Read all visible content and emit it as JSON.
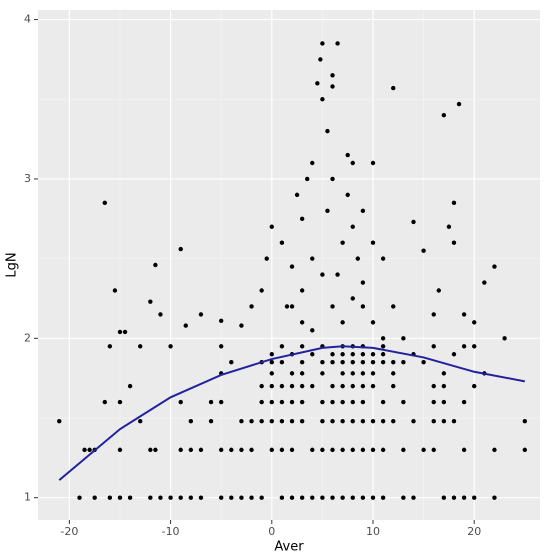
{
  "chart_data": {
    "type": "scatter",
    "x_label": "Aver",
    "y_label": "LgN",
    "xlim": [
      -23.1,
      26.5
    ],
    "ylim": [
      0.86,
      4.06
    ],
    "xticks": [
      -20,
      -10,
      0,
      10,
      20
    ],
    "yticks": [
      1,
      2,
      3,
      4
    ],
    "grid": true,
    "points": {
      "color": "#000000",
      "x": [
        -19,
        -17.5,
        -16,
        -15,
        -14,
        -12,
        -11,
        -10,
        -9,
        -8,
        -7,
        -5,
        -4,
        -3,
        -2,
        -1,
        1,
        2,
        3,
        4,
        5,
        6,
        7,
        8,
        9,
        10,
        11,
        13,
        14,
        17,
        18,
        19,
        20,
        22,
        -18.5,
        -18,
        -17.5,
        -15,
        -12,
        -11.5,
        -9,
        -8,
        -7,
        -5,
        -4,
        -3,
        -2,
        0,
        1,
        2,
        4,
        5,
        6,
        7,
        8,
        9,
        10,
        11,
        13,
        15,
        16,
        19,
        22,
        25,
        -21,
        -13,
        -8,
        -6,
        -3,
        -2,
        -1,
        0,
        1,
        2,
        3,
        5,
        6,
        7,
        8,
        9,
        10,
        11,
        12,
        14,
        16,
        17,
        18,
        25,
        -16.5,
        -15,
        -9,
        -6,
        -5,
        -1,
        0,
        1,
        2,
        3,
        5,
        6,
        7,
        8,
        9,
        11,
        13,
        16,
        17,
        19,
        -14,
        -1,
        0,
        1,
        2,
        3,
        4,
        6,
        7,
        8,
        9,
        10,
        12,
        16,
        17,
        20,
        -5,
        0,
        2,
        3,
        5,
        7,
        8,
        9,
        10,
        12,
        17,
        21,
        -4,
        -1,
        0,
        1,
        3,
        5,
        6,
        7,
        8,
        9,
        10,
        11,
        12,
        13,
        15,
        0,
        2,
        4,
        6,
        7,
        8,
        9,
        10,
        11,
        14,
        18,
        -16,
        -13,
        -10,
        -5,
        1,
        3,
        5,
        7,
        8,
        9,
        11,
        16,
        19,
        20,
        -16.5,
        -15.5,
        -15,
        -14.5,
        -12,
        -11.5,
        -11,
        -9,
        -8.5,
        -7,
        -5,
        -3,
        -2,
        -1,
        -0.5,
        0,
        1,
        1.5,
        2,
        2.5,
        3,
        3,
        3.5,
        4,
        4,
        4.5,
        4.8,
        5,
        5.5,
        5.5,
        6,
        6,
        6.5,
        5,
        6,
        6.5,
        7,
        7.5,
        7.5,
        8,
        8,
        8.5,
        9,
        9,
        10,
        10,
        11,
        12,
        12,
        14,
        15,
        16,
        16.5,
        17,
        17.5,
        18,
        18.5,
        18,
        19,
        20,
        21,
        22,
        23,
        6,
        5,
        4,
        3,
        2,
        7,
        8,
        9,
        10,
        11,
        13
      ],
      "y": [
        1,
        1,
        1,
        1,
        1,
        1,
        1,
        1,
        1,
        1,
        1,
        1,
        1,
        1,
        1,
        1,
        1,
        1,
        1,
        1,
        1,
        1,
        1,
        1,
        1,
        1,
        1,
        1,
        1,
        1,
        1,
        1,
        1,
        1,
        1.3,
        1.3,
        1.3,
        1.3,
        1.3,
        1.3,
        1.3,
        1.3,
        1.3,
        1.3,
        1.3,
        1.3,
        1.3,
        1.3,
        1.3,
        1.3,
        1.3,
        1.3,
        1.3,
        1.3,
        1.3,
        1.3,
        1.3,
        1.3,
        1.3,
        1.3,
        1.3,
        1.3,
        1.3,
        1.3,
        1.48,
        1.48,
        1.48,
        1.48,
        1.48,
        1.48,
        1.48,
        1.48,
        1.48,
        1.48,
        1.48,
        1.48,
        1.48,
        1.48,
        1.48,
        1.48,
        1.48,
        1.48,
        1.48,
        1.48,
        1.48,
        1.48,
        1.48,
        1.48,
        1.6,
        1.6,
        1.6,
        1.6,
        1.6,
        1.6,
        1.6,
        1.6,
        1.6,
        1.6,
        1.6,
        1.6,
        1.6,
        1.6,
        1.6,
        1.6,
        1.6,
        1.6,
        1.6,
        1.6,
        1.7,
        1.7,
        1.7,
        1.7,
        1.7,
        1.7,
        1.7,
        1.7,
        1.7,
        1.7,
        1.7,
        1.7,
        1.7,
        1.7,
        1.7,
        1.7,
        1.78,
        1.78,
        1.78,
        1.78,
        1.78,
        1.78,
        1.78,
        1.78,
        1.78,
        1.78,
        1.78,
        1.78,
        1.85,
        1.85,
        1.85,
        1.85,
        1.85,
        1.85,
        1.85,
        1.85,
        1.85,
        1.85,
        1.85,
        1.85,
        1.85,
        1.85,
        1.85,
        1.9,
        1.9,
        1.9,
        1.9,
        1.9,
        1.9,
        1.9,
        1.9,
        1.9,
        1.9,
        1.9,
        1.95,
        1.95,
        1.95,
        1.95,
        1.95,
        1.95,
        1.95,
        1.95,
        1.95,
        1.95,
        1.95,
        1.95,
        1.95,
        1.95,
        2.85,
        2.3,
        2.04,
        2.04,
        2.23,
        2.46,
        2.15,
        2.56,
        2.08,
        2.15,
        2.11,
        2.08,
        2.2,
        2.3,
        2.5,
        2.7,
        2.6,
        2.2,
        2.45,
        2.9,
        2.75,
        2.3,
        3.0,
        2.5,
        3.1,
        3.6,
        3.75,
        3.5,
        3.3,
        2.8,
        3.65,
        3.58,
        3.85,
        3.85,
        3.0,
        2.4,
        2.6,
        3.15,
        2.9,
        2.7,
        3.1,
        2.5,
        2.2,
        2.8,
        3.1,
        2.6,
        2.5,
        3.57,
        2.2,
        2.73,
        2.55,
        2.15,
        2.3,
        3.4,
        2.7,
        2.6,
        3.47,
        2.85,
        2.15,
        2.1,
        2.35,
        2.45,
        2.0,
        2.2,
        2.4,
        2.05,
        2.1,
        2.2,
        2.1,
        2.25,
        2.35,
        2.1,
        2.0,
        2.0
      ]
    },
    "fit": {
      "color": "#22229e",
      "x": [
        -21,
        -15,
        -10,
        -5,
        0,
        5,
        7,
        10,
        15,
        20,
        25
      ],
      "y": [
        1.11,
        1.43,
        1.63,
        1.77,
        1.87,
        1.94,
        1.95,
        1.94,
        1.88,
        1.79,
        1.73
      ]
    }
  }
}
